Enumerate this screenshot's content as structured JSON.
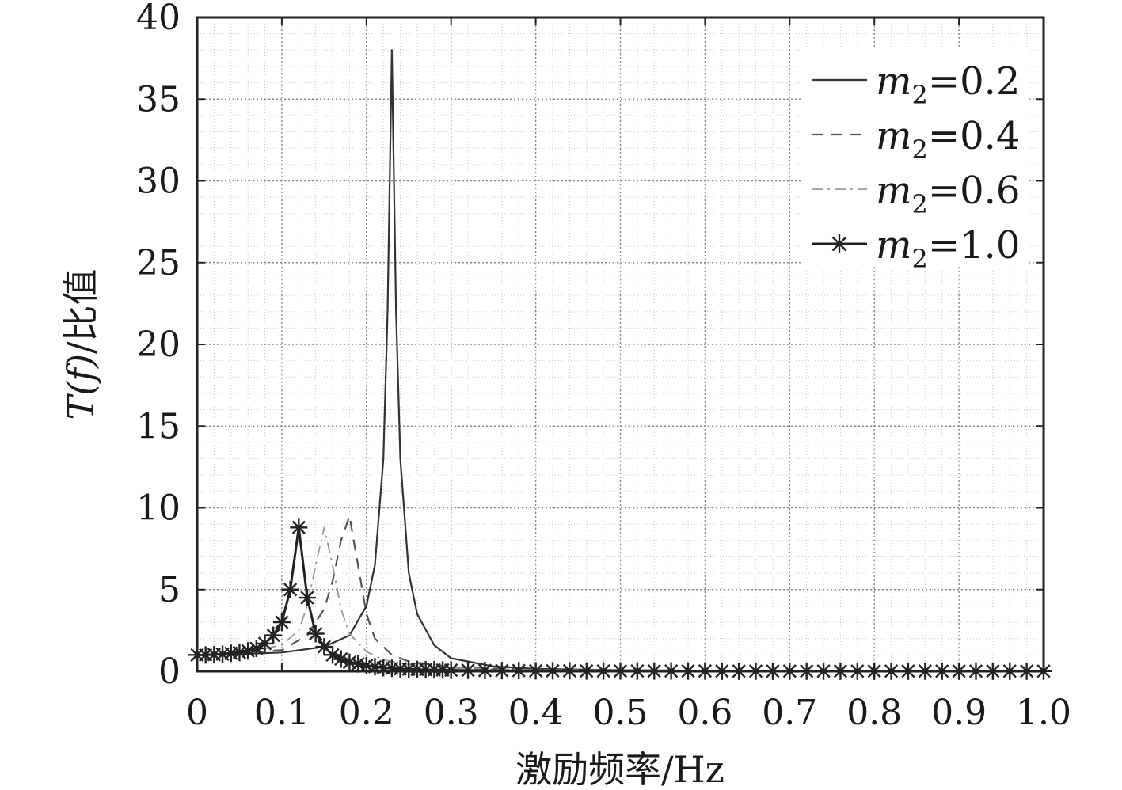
{
  "chart_data": {
    "type": "line",
    "xlabel": "激励频率/Hz",
    "ylabel": {
      "italic": "T(f)",
      "rest": "/比值"
    },
    "xlim": [
      0,
      1.0
    ],
    "ylim": [
      0,
      40
    ],
    "xticks": [
      "0",
      "0.1",
      "0.2",
      "0.3",
      "0.4",
      "0.5",
      "0.6",
      "0.7",
      "0.8",
      "0.9",
      "1.0"
    ],
    "yticks": [
      "0",
      "5",
      "10",
      "15",
      "20",
      "25",
      "30",
      "35",
      "40"
    ],
    "grid": true,
    "legend_position": "top-right",
    "series": [
      {
        "name": "m2=0.2",
        "legend": {
          "var": "m",
          "sub": "2",
          "value": "=0.2"
        },
        "style": "solid",
        "color": "#333333",
        "points": [
          [
            0,
            1.0
          ],
          [
            0.05,
            1.05
          ],
          [
            0.1,
            1.15
          ],
          [
            0.15,
            1.5
          ],
          [
            0.18,
            2.2
          ],
          [
            0.2,
            4.0
          ],
          [
            0.21,
            6.5
          ],
          [
            0.22,
            13
          ],
          [
            0.225,
            22
          ],
          [
            0.23,
            38
          ],
          [
            0.235,
            22
          ],
          [
            0.24,
            13
          ],
          [
            0.25,
            6
          ],
          [
            0.26,
            3.5
          ],
          [
            0.28,
            1.6
          ],
          [
            0.3,
            0.8
          ],
          [
            0.35,
            0.3
          ],
          [
            0.4,
            0.15
          ],
          [
            0.5,
            0.07
          ],
          [
            0.6,
            0.04
          ],
          [
            0.8,
            0.02
          ],
          [
            1.0,
            0.01
          ]
        ]
      },
      {
        "name": "m2=0.4",
        "legend": {
          "var": "m",
          "sub": "2",
          "value": "=0.4"
        },
        "style": "dashed",
        "color": "#555555",
        "points": [
          [
            0,
            1.0
          ],
          [
            0.05,
            1.1
          ],
          [
            0.1,
            1.3
          ],
          [
            0.13,
            2.2
          ],
          [
            0.15,
            3.8
          ],
          [
            0.16,
            5.5
          ],
          [
            0.17,
            8.0
          ],
          [
            0.18,
            9.5
          ],
          [
            0.19,
            6.5
          ],
          [
            0.2,
            3.5
          ],
          [
            0.21,
            2.0
          ],
          [
            0.23,
            1.0
          ],
          [
            0.25,
            0.6
          ],
          [
            0.3,
            0.25
          ],
          [
            0.4,
            0.1
          ],
          [
            0.6,
            0.04
          ],
          [
            0.8,
            0.02
          ],
          [
            1.0,
            0.01
          ]
        ]
      },
      {
        "name": "m2=0.6",
        "legend": {
          "var": "m",
          "sub": "2",
          "value": "=0.6"
        },
        "style": "dashdot",
        "color": "#999999",
        "points": [
          [
            0,
            1.0
          ],
          [
            0.05,
            1.1
          ],
          [
            0.1,
            1.6
          ],
          [
            0.12,
            2.5
          ],
          [
            0.13,
            4.0
          ],
          [
            0.14,
            6.5
          ],
          [
            0.15,
            8.8
          ],
          [
            0.16,
            6.5
          ],
          [
            0.17,
            3.8
          ],
          [
            0.18,
            2.3
          ],
          [
            0.2,
            1.2
          ],
          [
            0.22,
            0.7
          ],
          [
            0.25,
            0.4
          ],
          [
            0.3,
            0.2
          ],
          [
            0.4,
            0.08
          ],
          [
            0.6,
            0.03
          ],
          [
            0.8,
            0.02
          ],
          [
            1.0,
            0.01
          ]
        ]
      },
      {
        "name": "m2=1.0",
        "legend": {
          "var": "m",
          "sub": "2",
          "value": "=1.0"
        },
        "style": "solid-star",
        "color": "#222222",
        "points": [
          [
            0,
            1.0
          ],
          [
            0.01,
            1.0
          ],
          [
            0.02,
            1.02
          ],
          [
            0.03,
            1.05
          ],
          [
            0.04,
            1.1
          ],
          [
            0.05,
            1.15
          ],
          [
            0.06,
            1.25
          ],
          [
            0.07,
            1.4
          ],
          [
            0.08,
            1.7
          ],
          [
            0.09,
            2.2
          ],
          [
            0.1,
            3.0
          ],
          [
            0.11,
            5.0
          ],
          [
            0.12,
            8.8
          ],
          [
            0.13,
            4.5
          ],
          [
            0.14,
            2.3
          ],
          [
            0.15,
            1.5
          ],
          [
            0.16,
            1.0
          ],
          [
            0.17,
            0.75
          ],
          [
            0.18,
            0.55
          ],
          [
            0.19,
            0.45
          ],
          [
            0.2,
            0.35
          ],
          [
            0.21,
            0.28
          ],
          [
            0.22,
            0.22
          ],
          [
            0.23,
            0.18
          ],
          [
            0.24,
            0.15
          ],
          [
            0.25,
            0.13
          ],
          [
            0.26,
            0.11
          ],
          [
            0.27,
            0.1
          ],
          [
            0.28,
            0.09
          ],
          [
            0.29,
            0.08
          ],
          [
            0.3,
            0.07
          ],
          [
            0.32,
            0.06
          ],
          [
            0.34,
            0.05
          ],
          [
            0.36,
            0.04
          ],
          [
            0.38,
            0.04
          ],
          [
            0.4,
            0.03
          ],
          [
            0.42,
            0.03
          ],
          [
            0.44,
            0.03
          ],
          [
            0.46,
            0.02
          ],
          [
            0.48,
            0.02
          ],
          [
            0.5,
            0.02
          ],
          [
            0.52,
            0.02
          ],
          [
            0.54,
            0.02
          ],
          [
            0.56,
            0.02
          ],
          [
            0.58,
            0.02
          ],
          [
            0.6,
            0.02
          ],
          [
            0.62,
            0.01
          ],
          [
            0.64,
            0.01
          ],
          [
            0.66,
            0.01
          ],
          [
            0.68,
            0.01
          ],
          [
            0.7,
            0.01
          ],
          [
            0.72,
            0.01
          ],
          [
            0.74,
            0.01
          ],
          [
            0.76,
            0.01
          ],
          [
            0.78,
            0.01
          ],
          [
            0.8,
            0.01
          ],
          [
            0.82,
            0.01
          ],
          [
            0.84,
            0.01
          ],
          [
            0.86,
            0.01
          ],
          [
            0.88,
            0.01
          ],
          [
            0.9,
            0.01
          ],
          [
            0.92,
            0.01
          ],
          [
            0.94,
            0.01
          ],
          [
            0.96,
            0.01
          ],
          [
            0.98,
            0.01
          ],
          [
            1.0,
            0.01
          ]
        ]
      }
    ]
  }
}
